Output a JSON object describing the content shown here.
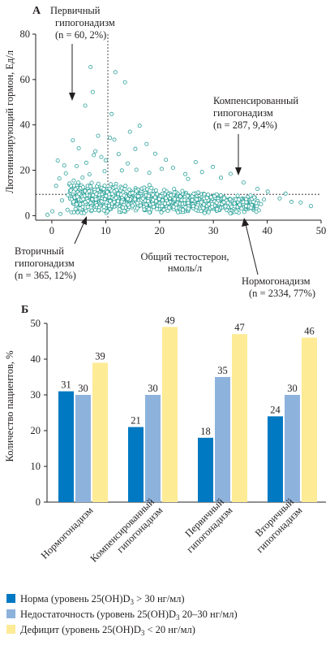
{
  "chart_data": [
    {
      "panel_label": "А",
      "type": "scatter",
      "xlabel_lines": [
        "Общий тестостерон,",
        "нмоль/л"
      ],
      "ylabel": "Лютеинизирующий гормон, Ед/л",
      "xlim": [
        -3,
        50
      ],
      "ylim": [
        -2,
        80
      ],
      "xticks": [
        0,
        10,
        20,
        30,
        40,
        50
      ],
      "yticks": [
        0,
        20,
        40,
        60,
        80
      ],
      "ref_lines": {
        "x": 10.4,
        "y": 9.4
      },
      "point_color": "#2ca29a",
      "points": [
        [
          7.2,
          65.5
        ],
        [
          11.8,
          63.2
        ],
        [
          7.6,
          54.5
        ],
        [
          13.6,
          58.8
        ],
        [
          6.2,
          48.5
        ],
        [
          11.1,
          44.8
        ],
        [
          16.3,
          39.6
        ],
        [
          14.5,
          37.0
        ],
        [
          8.6,
          35.2
        ],
        [
          10.8,
          34.3
        ],
        [
          3.9,
          33.2
        ],
        [
          11.6,
          33.5
        ],
        [
          17.6,
          31.6
        ],
        [
          5.0,
          29.7
        ],
        [
          8.1,
          28.4
        ],
        [
          7.8,
          26.7
        ],
        [
          9.2,
          25.9
        ],
        [
          12.4,
          27.1
        ],
        [
          15.5,
          29.4
        ],
        [
          19.2,
          27.3
        ],
        [
          1.1,
          24.3
        ],
        [
          2.3,
          22.1
        ],
        [
          4.6,
          21.8
        ],
        [
          6.4,
          23.3
        ],
        [
          10.0,
          24.4
        ],
        [
          14.1,
          23.0
        ],
        [
          21.2,
          24.6
        ],
        [
          22.5,
          21.1
        ],
        [
          26.7,
          23.6
        ],
        [
          29.9,
          21.5
        ],
        [
          33.2,
          18.4
        ],
        [
          2.6,
          18.6
        ],
        [
          1.4,
          16.4
        ],
        [
          3.3,
          14.2
        ],
        [
          0.8,
          13.1
        ],
        [
          35.6,
          14.6
        ],
        [
          38.2,
          11.8
        ],
        [
          40.1,
          10.6
        ],
        [
          42.3,
          7.6
        ],
        [
          44.5,
          6.1
        ],
        [
          46.2,
          5.8
        ],
        [
          36.9,
          8.9
        ],
        [
          39.4,
          7.1
        ],
        [
          -0.8,
          0.4
        ],
        [
          0.1,
          1.9
        ],
        [
          1.6,
          0.8
        ],
        [
          2.9,
          2.6
        ],
        [
          4.1,
          1.5
        ],
        [
          48.1,
          4.2
        ],
        [
          43.4,
          9.7
        ],
        [
          31.4,
          16.7
        ],
        [
          27.9,
          19.2
        ],
        [
          24.8,
          18.3
        ],
        [
          25.3,
          16.2
        ],
        [
          20.4,
          20.6
        ],
        [
          18.1,
          18.9
        ],
        [
          15.7,
          20.2
        ],
        [
          13.0,
          19.9
        ],
        [
          9.8,
          19.6
        ],
        [
          7.0,
          18.2
        ],
        [
          5.7,
          16.8
        ],
        [
          4.4,
          11.6
        ],
        [
          3.0,
          9.1
        ],
        [
          1.9,
          6.7
        ]
      ],
      "cloud": {
        "x_range": [
          4,
          38
        ],
        "y_range": [
          1,
          17
        ]
      },
      "annotations": [
        {
          "lines": [
            "Первичный",
            "гипогонадизм",
            "(n = 60, 2%)"
          ]
        },
        {
          "lines": [
            "Компенсированный",
            "гипогонадизм",
            "(n = 287, 9,4%)"
          ]
        },
        {
          "lines": [
            "Вторичный",
            "гипогонадизм",
            "(n = 365, 12%)"
          ]
        },
        {
          "lines": [
            "Нормогонадизм",
            "(n = 2334, 77%)"
          ]
        }
      ]
    },
    {
      "panel_label": "Б",
      "type": "bar",
      "ylabel": "Количество пациентов, %",
      "ylim": [
        0,
        50
      ],
      "yticks": [
        0,
        10,
        20,
        30,
        40,
        50
      ],
      "categories": [
        [
          "Нормогонадизм"
        ],
        [
          "Компенсированный",
          "гипогонадизм"
        ],
        [
          "Первичный",
          "гипогонадизм"
        ],
        [
          "Вторичный",
          "гипогонадизм"
        ]
      ],
      "series": [
        {
          "name": "Норма",
          "legend_lines": [
            "Норма (уровень 25(OH)D",
            "3",
            " > 30 нг/мл)"
          ],
          "color": "#0079c2",
          "values": [
            31,
            21,
            18,
            24
          ]
        },
        {
          "name": "Недостаточность",
          "legend_lines": [
            "Недостаточность (уровень 25(OH)D",
            "3",
            " 20–30 нг/мл)"
          ],
          "color": "#8db3dd",
          "values": [
            30,
            30,
            35,
            30
          ]
        },
        {
          "name": "Дефицит",
          "legend_lines": [
            "Дефицит (уровень 25(OH)D",
            "3",
            " < 20 нг/мл)"
          ],
          "color": "#fdeb96",
          "values": [
            39,
            49,
            47,
            46
          ]
        }
      ],
      "data_labels": [
        [
          "31",
          "30",
          "39"
        ],
        [
          "21",
          "30",
          "49"
        ],
        [
          "18",
          "35",
          "47"
        ],
        [
          "24",
          "30",
          "46"
        ]
      ]
    }
  ]
}
